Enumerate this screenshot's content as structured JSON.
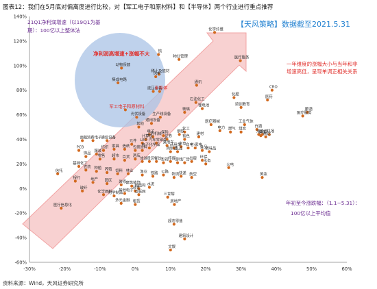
{
  "header": {
    "title": "图表12：我们在5月底对偏离度进行比较，对【军工电子和原材料】和【半导体】两个行业进行重点推荐"
  },
  "footer": {
    "source": "资料来源：Wind，天风证券研究所"
  },
  "badge": {
    "text": "【天风策略】数据截至2021.5.31",
    "color": "#1e7fd0"
  },
  "notes": {
    "y_axis_note_line1": "21Q1净利润增速（以19Q1为基",
    "y_axis_note_line2": "期）：100亿以上整体法",
    "x_axis_note_line1": "年初至今涨跌幅：（1.1~5.31）：",
    "x_axis_note_line2": "100亿以上平均值",
    "arrow_note_line1": "一年维度的涨幅大小与当年和非",
    "arrow_note_line2": "增速高低，呈现单调正相关关系",
    "circle_note": "净利润高增速+涨幅不大",
    "note_color_purple": "#6b2c91",
    "note_color_red": "#e0302c"
  },
  "colors": {
    "dot": "#d2691e",
    "circle_fill": "#aac3e6",
    "arrow_fill": "#f6c7c7",
    "arrow_stroke": "#ef9a9a",
    "axis": "#888888",
    "highlight_label": "#e0302c"
  },
  "chart_data": {
    "type": "scatter",
    "title": "",
    "xlabel": "",
    "ylabel": "",
    "xlim": [
      -0.3,
      0.6
    ],
    "ylim": [
      -0.6,
      1.4
    ],
    "x_ticks": [
      "-30%",
      "-20%",
      "-10%",
      "0%",
      "10%",
      "20%",
      "30%",
      "40%",
      "50%",
      "60%"
    ],
    "y_ticks": [
      "-60%",
      "-40%",
      "-20%",
      "0%",
      "20%",
      "40%",
      "60%",
      "80%",
      "100%",
      "120%",
      "140%"
    ],
    "grid": false,
    "points": [
      {
        "label": "化学纤维",
        "x": 0.225,
        "y": 1.27
      },
      {
        "label": "钨",
        "x": 0.066,
        "y": 1.09
      },
      {
        "label": "物业管理",
        "x": 0.124,
        "y": 1.05
      },
      {
        "label": "医疗服务",
        "x": 0.298,
        "y": 1.04
      },
      {
        "label": "动物保健",
        "x": -0.039,
        "y": 0.98
      },
      {
        "label": "稀土及磁材",
        "x": 0.067,
        "y": 0.93
      },
      {
        "label": "风电",
        "x": 0.058,
        "y": 0.91
      },
      {
        "label": "通讯",
        "x": 0.174,
        "y": 0.84
      },
      {
        "label": "集成电路",
        "x": -0.049,
        "y": 0.86
      },
      {
        "label": "液压设备",
        "x": 0.051,
        "y": 0.79
      },
      {
        "label": "半导体",
        "x": 0.069,
        "y": 0.79,
        "highlight": true
      },
      {
        "label": "CRO",
        "x": 0.388,
        "y": 0.8
      },
      {
        "label": "医药",
        "x": 0.375,
        "y": 0.72
      },
      {
        "label": "石油化工",
        "x": 0.172,
        "y": 0.7
      },
      {
        "label": "化肥",
        "x": 0.28,
        "y": 0.74
      },
      {
        "label": "锂电池",
        "x": 0.19,
        "y": 0.65
      },
      {
        "label": "培训教育",
        "x": 0.3,
        "y": 0.66
      },
      {
        "label": "玻璃",
        "x": 0.14,
        "y": 0.62
      },
      {
        "label": "酿酒",
        "x": 0.488,
        "y": 0.62
      },
      {
        "label": "医疗服务2",
        "x": 0.475,
        "y": 0.59
      },
      {
        "label": "军工电子和原材料",
        "x": -0.028,
        "y": 0.64,
        "highlight": true
      },
      {
        "label": "光伏设备",
        "x": 0.004,
        "y": 0.58
      },
      {
        "label": "生产线设备",
        "x": 0.071,
        "y": 0.58
      },
      {
        "label": "通用设备",
        "x": 0.046,
        "y": 0.53
      },
      {
        "label": "其他",
        "x": 0.01,
        "y": 0.5
      },
      {
        "label": "医疗器械",
        "x": 0.215,
        "y": 0.52
      },
      {
        "label": "工业气体",
        "x": 0.31,
        "y": 0.52
      },
      {
        "label": "白酒",
        "x": 0.345,
        "y": 0.48
      },
      {
        "label": "黄酒",
        "x": 0.36,
        "y": 0.44
      },
      {
        "label": "机场",
        "x": 0.38,
        "y": 0.44
      },
      {
        "label": "建筑",
        "x": 0.356,
        "y": 0.43
      },
      {
        "label": "港口",
        "x": 0.35,
        "y": 0.44
      },
      {
        "label": "航运",
        "x": 0.37,
        "y": 0.42
      },
      {
        "label": "煤炭",
        "x": 0.3,
        "y": 0.46
      },
      {
        "label": "燃气",
        "x": 0.27,
        "y": 0.46
      },
      {
        "label": "电力",
        "x": 0.24,
        "y": 0.47
      },
      {
        "label": "化工",
        "x": 0.14,
        "y": 0.46
      },
      {
        "label": "钢铁",
        "x": 0.125,
        "y": 0.44
      },
      {
        "label": "有色",
        "x": 0.14,
        "y": 0.4
      },
      {
        "label": "建材",
        "x": 0.18,
        "y": 0.42
      },
      {
        "label": "证券",
        "x": 0.09,
        "y": 0.4
      },
      {
        "label": "保险",
        "x": 0.08,
        "y": 0.43
      },
      {
        "label": "工程机械",
        "x": 0.05,
        "y": 0.42
      },
      {
        "label": "电子",
        "x": 0.04,
        "y": 0.44
      },
      {
        "label": "计算机",
        "x": 0.03,
        "y": 0.4
      },
      {
        "label": "通信设备",
        "x": -0.08,
        "y": 0.39
      },
      {
        "label": "消费电子",
        "x": -0.12,
        "y": 0.39
      },
      {
        "label": "面板",
        "x": -0.15,
        "y": 0.39
      },
      {
        "label": "PCB",
        "x": -0.16,
        "y": 0.31
      },
      {
        "label": "LED",
        "x": 0.02,
        "y": 0.37
      },
      {
        "label": "元件",
        "x": -0.01,
        "y": 0.36
      },
      {
        "label": "汽车零部件",
        "x": 0.06,
        "y": 0.37
      },
      {
        "label": "乘用车",
        "x": 0.09,
        "y": 0.35
      },
      {
        "label": "商用车",
        "x": 0.11,
        "y": 0.33
      },
      {
        "label": "家电",
        "x": 0.13,
        "y": 0.34
      },
      {
        "label": "白电",
        "x": 0.15,
        "y": 0.33
      },
      {
        "label": "小家电",
        "x": 0.17,
        "y": 0.33
      },
      {
        "label": "食品",
        "x": 0.19,
        "y": 0.31
      },
      {
        "label": "调味品",
        "x": 0.21,
        "y": 0.3
      },
      {
        "label": "乳品",
        "x": 0.12,
        "y": 0.3
      },
      {
        "label": "肉制品",
        "x": 0.1,
        "y": 0.3
      },
      {
        "label": "电子化学品",
        "x": 0.04,
        "y": 0.33
      },
      {
        "label": "涂料",
        "x": 0.02,
        "y": 0.31
      },
      {
        "label": "包装",
        "x": 0.0,
        "y": 0.31
      },
      {
        "label": "造纸",
        "x": -0.03,
        "y": 0.32
      },
      {
        "label": "家具",
        "x": -0.06,
        "y": 0.32
      },
      {
        "label": "纺织",
        "x": -0.09,
        "y": 0.31
      },
      {
        "label": "服装",
        "x": -0.11,
        "y": 0.28
      },
      {
        "label": "饰品",
        "x": -0.14,
        "y": 0.26
      },
      {
        "label": "零售",
        "x": -0.1,
        "y": 0.24
      },
      {
        "label": "超市",
        "x": -0.06,
        "y": 0.24
      },
      {
        "label": "百货",
        "x": -0.03,
        "y": 0.23
      },
      {
        "label": "酒店",
        "x": 0.0,
        "y": 0.24
      },
      {
        "label": "旅游",
        "x": 0.02,
        "y": 0.22
      },
      {
        "label": "景区",
        "x": 0.04,
        "y": 0.22
      },
      {
        "label": "餐饮",
        "x": 0.06,
        "y": 0.22
      },
      {
        "label": "影视",
        "x": 0.08,
        "y": 0.21
      },
      {
        "label": "传媒",
        "x": 0.1,
        "y": 0.22
      },
      {
        "label": "游戏",
        "x": 0.12,
        "y": 0.21
      },
      {
        "label": "广告",
        "x": 0.14,
        "y": 0.21
      },
      {
        "label": "出版",
        "x": 0.16,
        "y": 0.22
      },
      {
        "label": "环保",
        "x": 0.19,
        "y": 0.23
      },
      {
        "label": "水务",
        "x": 0.2,
        "y": 0.2
      },
      {
        "label": "火电",
        "x": 0.265,
        "y": 0.17
      },
      {
        "label": "基础化工",
        "x": -0.16,
        "y": 0.18
      },
      {
        "label": "农药",
        "x": -0.14,
        "y": 0.15
      },
      {
        "label": "种植",
        "x": -0.11,
        "y": 0.14
      },
      {
        "label": "养殖",
        "x": -0.08,
        "y": 0.13
      },
      {
        "label": "饲料",
        "x": -0.05,
        "y": 0.12
      },
      {
        "label": "林业",
        "x": -0.02,
        "y": 0.12
      },
      {
        "label": "渔业",
        "x": 0.02,
        "y": 0.11
      },
      {
        "label": "铁路",
        "x": 0.05,
        "y": 0.1
      },
      {
        "label": "公路",
        "x": 0.08,
        "y": 0.11
      },
      {
        "label": "物流",
        "x": 0.11,
        "y": 0.09
      },
      {
        "label": "快递",
        "x": 0.13,
        "y": 0.1
      },
      {
        "label": "航空",
        "x": 0.16,
        "y": 0.09
      },
      {
        "label": "美妆",
        "x": 0.36,
        "y": 0.09
      },
      {
        "label": "信托",
        "x": -0.22,
        "y": 0.12
      },
      {
        "label": "银行",
        "x": -0.17,
        "y": 0.06
      },
      {
        "label": "地产",
        "x": -0.12,
        "y": 0.05
      },
      {
        "label": "园区",
        "x": -0.08,
        "y": 0.04
      },
      {
        "label": "装修",
        "x": -0.04,
        "y": 0.03
      },
      {
        "label": "建筑装饰",
        "x": -0.01,
        "y": 0.02
      },
      {
        "label": "钢结构",
        "x": 0.01,
        "y": 0.0
      },
      {
        "label": "水泥",
        "x": 0.04,
        "y": 0.01
      },
      {
        "label": "玻纤",
        "x": -0.15,
        "y": -0.02
      },
      {
        "label": "医疗信息化",
        "x": -0.21,
        "y": -0.16
      },
      {
        "label": "化学原料",
        "x": -0.09,
        "y": -0.05
      },
      {
        "label": "化学制品",
        "x": -0.06,
        "y": -0.06
      },
      {
        "label": "其他电子",
        "x": -0.03,
        "y": -0.04
      },
      {
        "label": "软件",
        "x": 0.0,
        "y": -0.02
      },
      {
        "label": "互联网",
        "x": 0.01,
        "y": -0.05
      },
      {
        "label": "多元金融",
        "x": -0.04,
        "y": -0.12
      },
      {
        "label": "租赁",
        "x": 0.0,
        "y": -0.13
      },
      {
        "label": "三甘醇",
        "x": 0.092,
        "y": -0.07
      },
      {
        "label": "房地产",
        "x": 0.111,
        "y": -0.13
      },
      {
        "label": "超市零售",
        "x": 0.11,
        "y": -0.29
      },
      {
        "label": "建筑设计",
        "x": 0.14,
        "y": -0.41
      },
      {
        "label": "文娱",
        "x": 0.1,
        "y": -0.5
      }
    ]
  }
}
